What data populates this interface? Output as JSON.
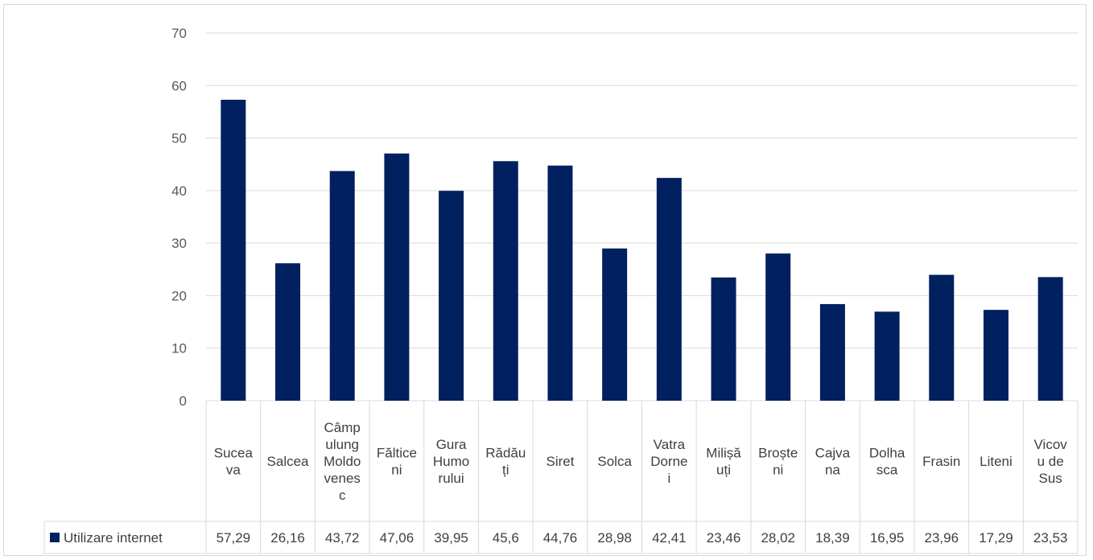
{
  "chart_data": {
    "type": "bar",
    "categories": [
      [
        "Sucea",
        "va"
      ],
      [
        "Salcea"
      ],
      [
        "Câmp",
        "ulung",
        "Moldo",
        "venes",
        "c"
      ],
      [
        "Făltice",
        "ni"
      ],
      [
        "Gura",
        "Humo",
        "rului"
      ],
      [
        "Rădău",
        "ți"
      ],
      [
        "Siret"
      ],
      [
        "Solca"
      ],
      [
        "Vatra",
        "Dorne",
        "i"
      ],
      [
        "Milișă",
        "uți"
      ],
      [
        "Broște",
        "ni"
      ],
      [
        "Cajva",
        "na"
      ],
      [
        "Dolha",
        "sca"
      ],
      [
        "Frasin"
      ],
      [
        "Liteni"
      ],
      [
        "Vicov",
        "u de",
        "Sus"
      ]
    ],
    "series": [
      {
        "name": "Utilizare internet",
        "color": "#002060",
        "values": [
          57.29,
          26.16,
          43.72,
          47.06,
          39.95,
          45.6,
          44.76,
          28.98,
          42.41,
          23.46,
          28.02,
          18.39,
          16.95,
          23.96,
          17.29,
          23.53
        ],
        "labels": [
          "57,29",
          "26,16",
          "43,72",
          "47,06",
          "39,95",
          "45,6",
          "44,76",
          "28,98",
          "42,41",
          "23,46",
          "28,02",
          "18,39",
          "16,95",
          "23,96",
          "17,29",
          "23,53"
        ]
      }
    ],
    "yticks": [
      "0",
      "10",
      "20",
      "30",
      "40",
      "50",
      "60",
      "70"
    ],
    "ylim": [
      0,
      70
    ],
    "grid": true,
    "legend": "data-table"
  }
}
